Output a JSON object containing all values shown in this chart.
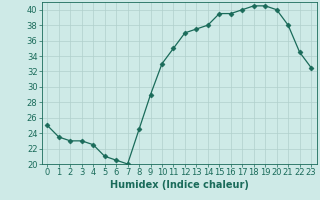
{
  "x": [
    0,
    1,
    2,
    3,
    4,
    5,
    6,
    7,
    8,
    9,
    10,
    11,
    12,
    13,
    14,
    15,
    16,
    17,
    18,
    19,
    20,
    21,
    22,
    23
  ],
  "y": [
    25,
    23.5,
    23,
    23,
    22.5,
    21,
    20.5,
    20,
    24.5,
    29,
    33,
    35,
    37,
    37.5,
    38,
    39.5,
    39.5,
    40,
    40.5,
    40.5,
    40,
    38,
    34.5,
    32.5
  ],
  "xlabel": "Humidex (Indice chaleur)",
  "ylim": [
    20,
    41
  ],
  "xlim": [
    -0.5,
    23.5
  ],
  "yticks": [
    20,
    22,
    24,
    26,
    28,
    30,
    32,
    34,
    36,
    38,
    40
  ],
  "xticks": [
    0,
    1,
    2,
    3,
    4,
    5,
    6,
    7,
    8,
    9,
    10,
    11,
    12,
    13,
    14,
    15,
    16,
    17,
    18,
    19,
    20,
    21,
    22,
    23
  ],
  "line_color": "#1a6b5a",
  "marker": "D",
  "marker_size": 2.5,
  "bg_color": "#ceeae7",
  "grid_color": "#b0d0cc",
  "label_fontsize": 7,
  "tick_fontsize": 6
}
